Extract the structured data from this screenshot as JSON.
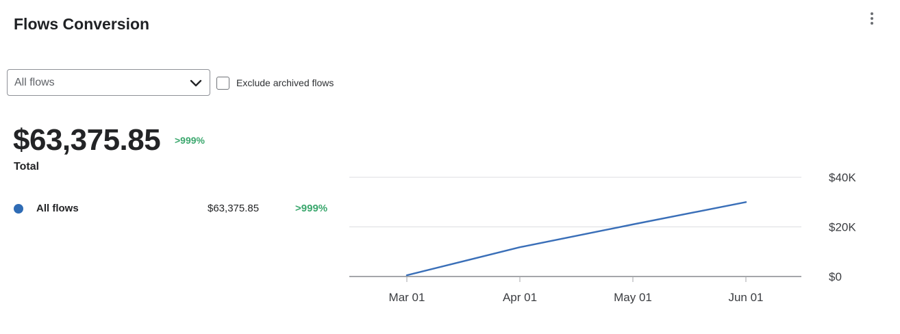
{
  "header": {
    "title": "Flows Conversion",
    "menu_icon": "more-vertical-icon"
  },
  "filters": {
    "select": {
      "value": "All flows",
      "icon": "chevron-down-icon"
    },
    "checkbox": {
      "label": "Exclude archived flows",
      "checked": false
    }
  },
  "summary": {
    "value": "$63,375.85",
    "change": ">999%",
    "label": "Total"
  },
  "legend": [
    {
      "name": "All flows",
      "value": "$63,375.85",
      "change": ">999%",
      "color": "#2f6cb5"
    }
  ],
  "colors": {
    "line": "#3a6fb8",
    "positive": "#3aa76d",
    "grid": "#dcdde0",
    "baseline": "#a4a6aa"
  },
  "chart_data": {
    "type": "line",
    "x": [
      "Mar 01",
      "Apr 01",
      "May 01",
      "Jun 01"
    ],
    "series": [
      {
        "values": [
          500,
          11800,
          21000,
          30000
        ]
      }
    ],
    "yticks": [
      "$0",
      "$20K",
      "$40K"
    ],
    "ylim": [
      0,
      40000
    ],
    "y_axis_side": "right",
    "grid": true
  }
}
